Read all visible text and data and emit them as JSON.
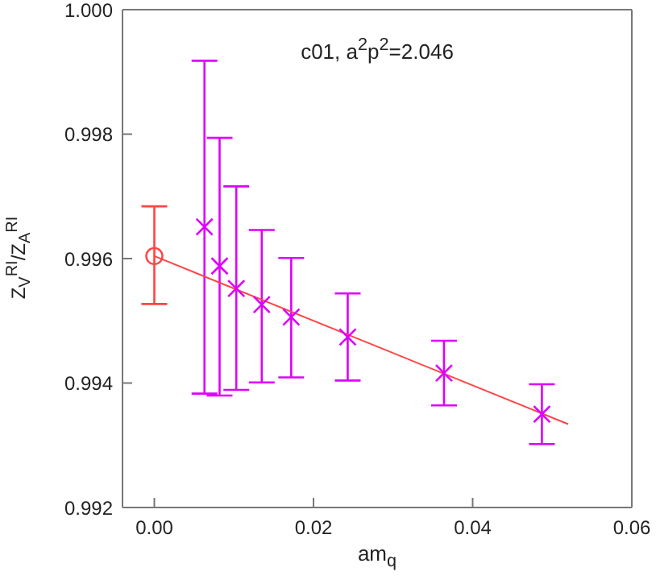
{
  "chart_data": {
    "type": "scatter",
    "title": "c01, a$^{2}$p$^{2}$=2.046",
    "xlabel": "am$_{q}$",
    "ylabel": "Z$_{V}$$^{RI}$/Z$_{A}$$^{RI}$",
    "xlim": [
      -0.004,
      0.06
    ],
    "xticks": [
      {
        "value": 0,
        "label": "0.00"
      },
      {
        "value": 0.02,
        "label": "0.02"
      },
      {
        "value": 0.04,
        "label": "0.04"
      },
      {
        "value": 0.06,
        "label": "0.06"
      }
    ],
    "ylim": [
      0.992,
      1.0
    ],
    "yticks": [
      0.992,
      0.994,
      0.996,
      0.998,
      {
        "value": 1.0,
        "label": "1.000"
      }
    ],
    "grid": false,
    "legend": false,
    "series": [
      {
        "marker": "circle",
        "color": "#ff4444",
        "x": [
          0
        ],
        "values": [
          0.99604
        ],
        "errors": [
          [
            0.99527,
            0.99684
          ]
        ]
      },
      {
        "marker": "cross",
        "color": "#dd00ff",
        "x": [
          0.0063,
          0.0082,
          0.0103,
          0.0135,
          0.0172,
          0.0243,
          0.0364,
          0.0487
        ],
        "values": [
          0.99651,
          0.99588,
          0.99552,
          0.99526,
          0.99506,
          0.99474,
          0.99416,
          0.9935
        ],
        "errors": [
          [
            0.99383,
            0.99918
          ],
          [
            0.9938,
            0.99794
          ],
          [
            0.99389,
            0.99716
          ],
          [
            0.99401,
            0.99646
          ],
          [
            0.99409,
            0.99601
          ],
          [
            0.99404,
            0.99544
          ],
          [
            0.99364,
            0.99468
          ],
          [
            0.99302,
            0.99398
          ]
        ]
      },
      {
        "type": "line",
        "marker": "none",
        "color": "#ff4444",
        "x": [
          0,
          0.052
        ],
        "values": [
          0.99604,
          0.99334
        ]
      }
    ]
  }
}
